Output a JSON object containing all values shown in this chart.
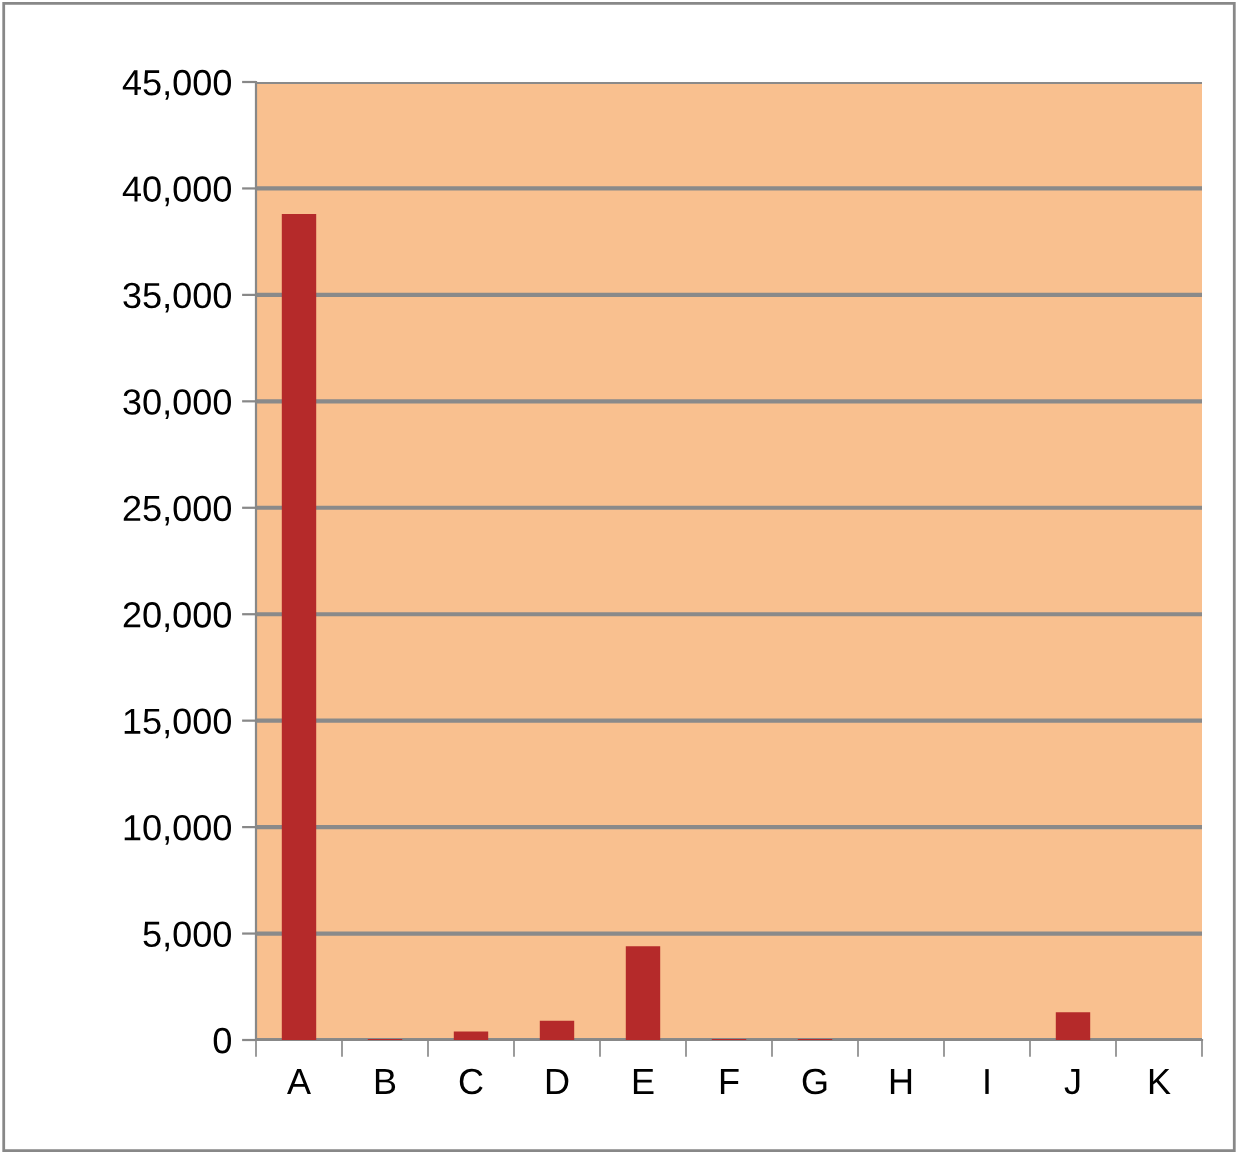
{
  "chart_data": {
    "type": "bar",
    "categories": [
      "A",
      "B",
      "C",
      "D",
      "E",
      "F",
      "G",
      "H",
      "I",
      "J",
      "K"
    ],
    "values": [
      38800,
      50,
      400,
      900,
      4400,
      50,
      50,
      0,
      0,
      1300,
      0
    ],
    "color": "#b52a2a",
    "ylim": [
      0,
      45000
    ],
    "yticks": [
      {
        "value": 0,
        "label": "0"
      },
      {
        "value": 5000,
        "label": "5,000"
      },
      {
        "value": 10000,
        "label": "10,000"
      },
      {
        "value": 15000,
        "label": "15,000"
      },
      {
        "value": 20000,
        "label": "20,000"
      },
      {
        "value": 25000,
        "label": "25,000"
      },
      {
        "value": 30000,
        "label": "30,000"
      },
      {
        "value": 35000,
        "label": "35,000"
      },
      {
        "value": 40000,
        "label": "40,000"
      },
      {
        "value": 45000,
        "label": "45,000"
      }
    ],
    "grid": "y",
    "legend": false
  }
}
